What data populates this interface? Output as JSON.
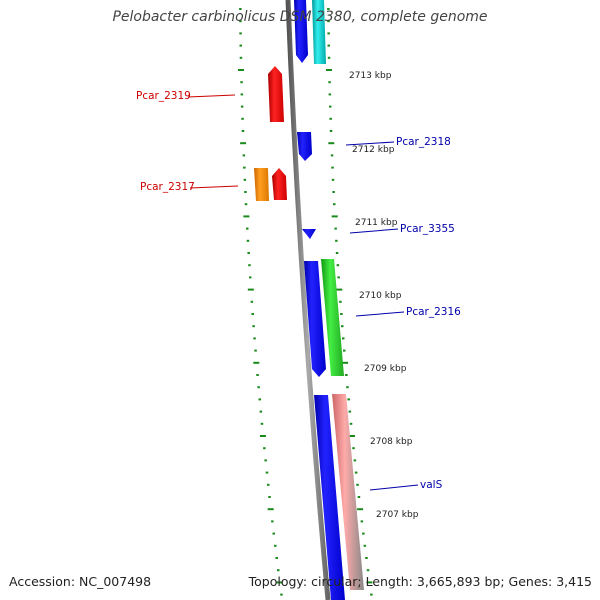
{
  "title": "Pelobacter carbinolicus DSM 2380, complete genome",
  "footer": {
    "accession": "Accession: NC_007498",
    "topology": "Topology: circular; Length: 3,665,893 bp; Genes: 3,415"
  },
  "colors": {
    "backbone": "#8a8a8a",
    "ticks": "#1a8a1a",
    "label_red": "#cc0000",
    "label_blue": "#0000aa",
    "gene_blue": "#0000ee",
    "gene_cyan": "#00cccc",
    "gene_red": "#ee0000",
    "gene_orange": "#ff8c00",
    "gene_green": "#22cc22",
    "gene_pink": "#ee8888"
  },
  "kbp_ticks": [
    "2713 kbp",
    "2712 kbp",
    "2711 kbp",
    "2710 kbp",
    "2709 kbp",
    "2708 kbp",
    "2707 kbp"
  ],
  "gene_labels": [
    "Pcar_2319",
    "Pcar_2317",
    "Pcar_2318",
    "Pcar_3355",
    "Pcar_2316",
    "valS"
  ]
}
